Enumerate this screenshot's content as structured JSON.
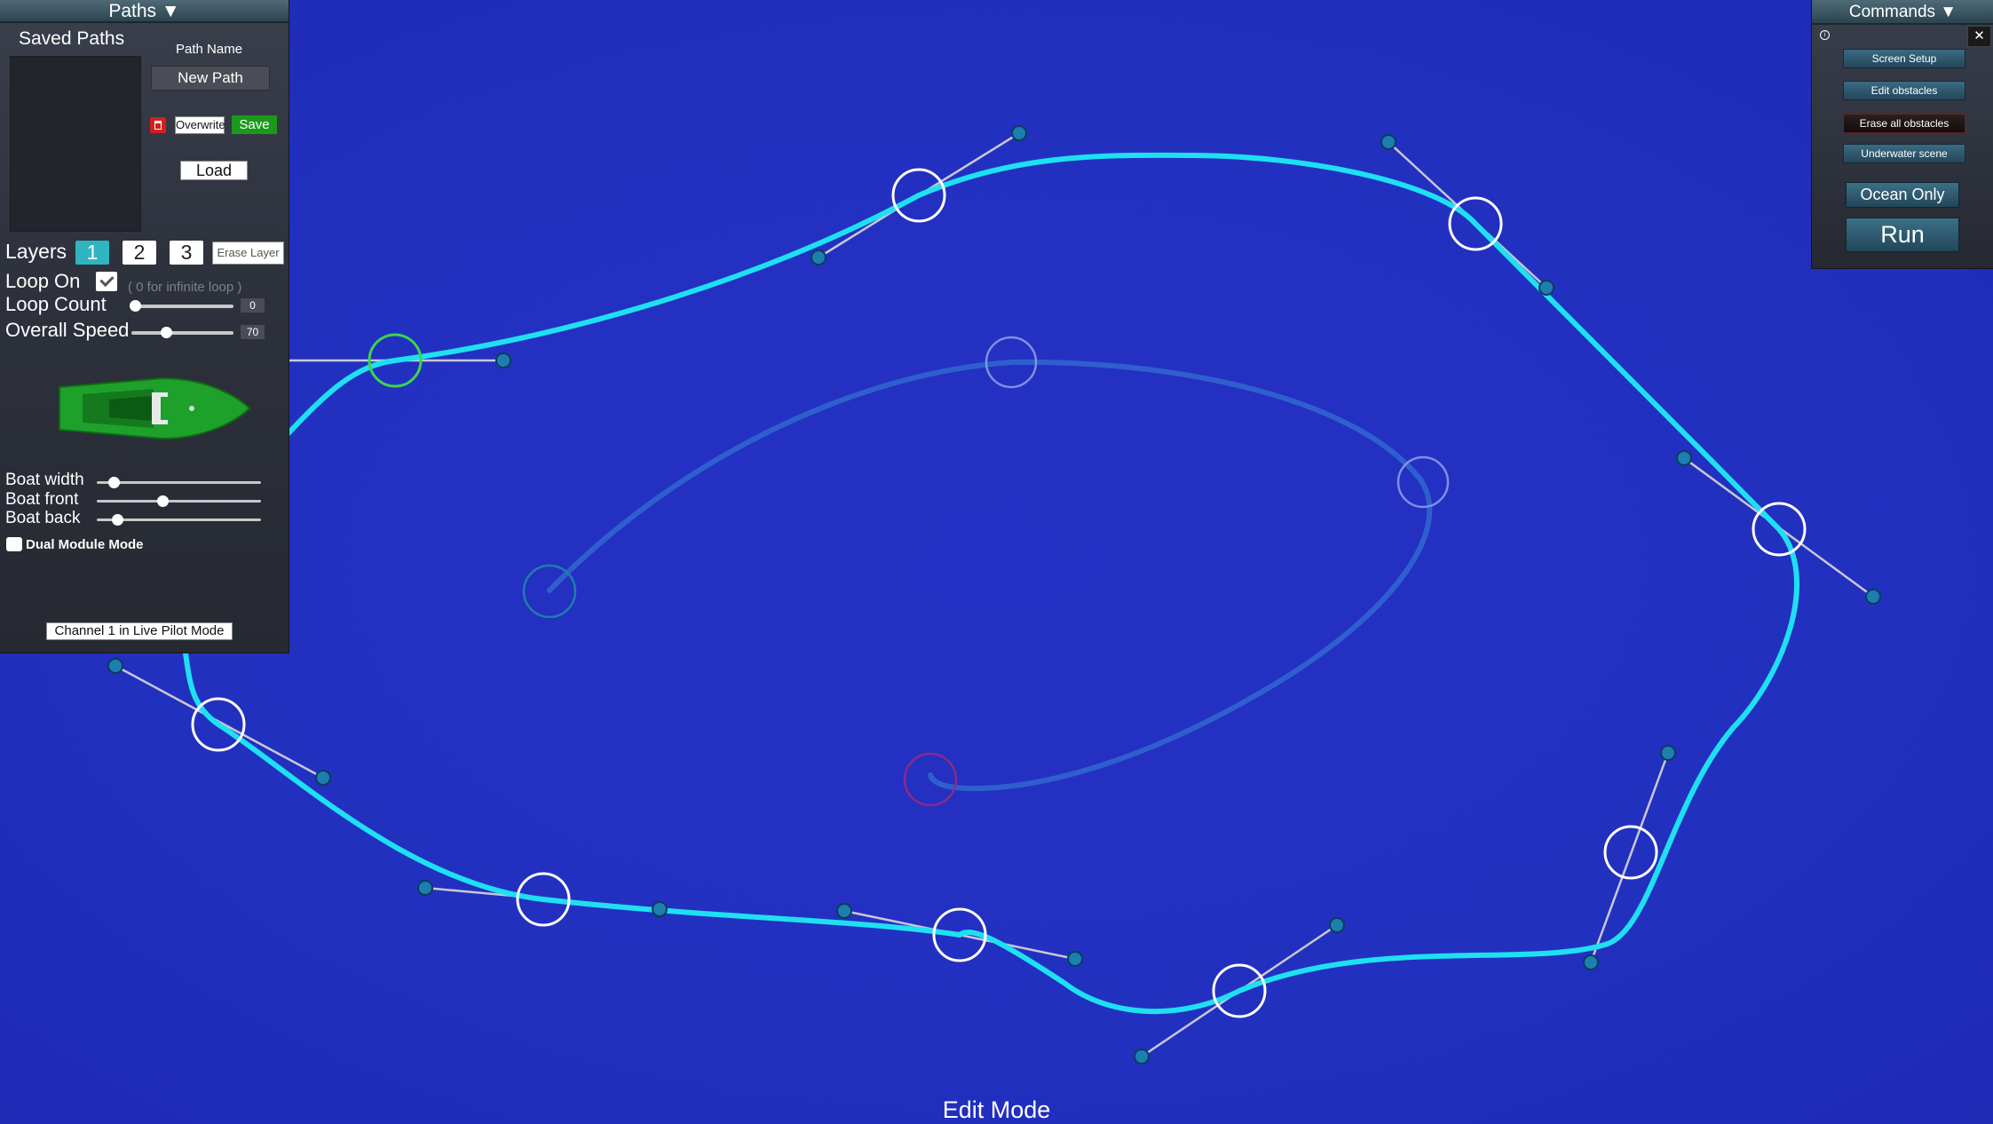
{
  "paths_panel": {
    "title": "Paths ▼",
    "saved_paths_label": "Saved Paths",
    "path_name_label": "Path Name",
    "path_name_value": "New Path",
    "overwrite_label": "Overwrite",
    "save_label": "Save",
    "load_label": "Load",
    "layers_label": "Layers",
    "layers": [
      "1",
      "2",
      "3"
    ],
    "active_layer": "1",
    "erase_layer_label": "Erase Layer",
    "loop_on_label": "Loop On",
    "loop_on_checked": true,
    "loop_hint": "( 0 for infinite loop )",
    "loop_count_label": "Loop Count",
    "loop_count_value": "0",
    "overall_speed_label": "Overall Speed",
    "overall_speed_value": "70",
    "boat_width_label": "Boat width",
    "boat_width_level": 0.12,
    "boat_front_label": "Boat front",
    "boat_front_level": 0.42,
    "boat_back_label": "Boat back",
    "boat_back_level": 0.14,
    "dual_module_label": "Dual Module Mode",
    "channel_status": "Channel 1 in Live Pilot Mode"
  },
  "commands_panel": {
    "title": "Commands ▼",
    "buttons": [
      "Screen Setup",
      "Edit obstacles",
      "Erase all obstacles",
      "Underwater scene"
    ],
    "ocean_only_label": "Ocean Only",
    "run_label": "Run"
  },
  "mode_label": "Edit Mode",
  "colors": {
    "ocean": "#2230c0",
    "active_path": "#1ee0f2",
    "inactive_path": "#2f5fcf",
    "selected_node": "#3ad64a",
    "node_ring": "#ffffff",
    "save_green": "#1a9a1a",
    "delete_red": "#d02020",
    "boat_green": "#1ea12a"
  }
}
